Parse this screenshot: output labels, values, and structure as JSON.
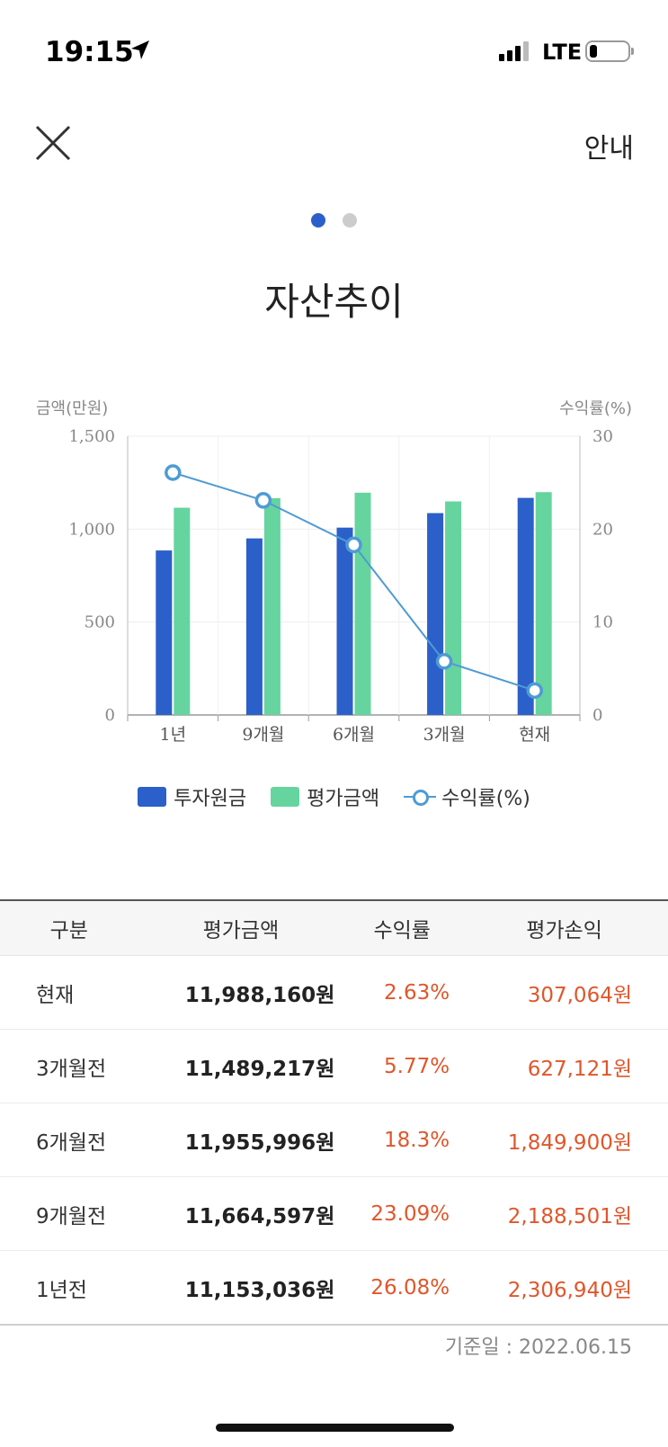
{
  "status_bar": {
    "time": "19:15",
    "network": "LTE"
  },
  "header": {
    "info_label": "안내"
  },
  "pager": {
    "total": 2,
    "active": 0
  },
  "page_title": "자산추이",
  "colors": {
    "invest": "#2b5fc9",
    "eval": "#66d49e",
    "rate": "#4e9bd4",
    "negative_red": "#e0562a"
  },
  "chart_data": {
    "type": "bar",
    "categories": [
      "1년",
      "9개월",
      "6개월",
      "3개월",
      "현재"
    ],
    "y_left_label": "금액(만원)",
    "y_right_label": "수익률(%)",
    "y_left_ticks": [
      "0",
      "500",
      "1,000",
      "1,500"
    ],
    "y_right_ticks": [
      "0",
      "10",
      "20",
      "30"
    ],
    "ylim_left": [
      0,
      1500
    ],
    "ylim_right": [
      0,
      30
    ],
    "series": [
      {
        "name": "투자원금",
        "type": "bar",
        "axis": "left",
        "values": [
          885,
          950,
          1008,
          1086,
          1168
        ]
      },
      {
        "name": "평가금액",
        "type": "bar",
        "axis": "left",
        "values": [
          1115,
          1166,
          1196,
          1149,
          1199
        ]
      },
      {
        "name": "수익률(%)",
        "type": "line",
        "axis": "right",
        "values": [
          26.08,
          23.09,
          18.3,
          5.77,
          2.63
        ]
      }
    ],
    "grid": true,
    "legend": "bottom-center"
  },
  "table": {
    "headers": [
      "구분",
      "평가금액",
      "수익률",
      "평가손익"
    ],
    "rows": [
      [
        "현재",
        "11,988,160원",
        "2.63%",
        "307,064원"
      ],
      [
        "3개월전",
        "11,489,217원",
        "5.77%",
        "627,121원"
      ],
      [
        "6개월전",
        "11,955,996원",
        "18.3%",
        "1,849,900원"
      ],
      [
        "9개월전",
        "11,664,597원",
        "23.09%",
        "2,188,501원"
      ],
      [
        "1년전",
        "11,153,036원",
        "26.08%",
        "2,306,940원"
      ]
    ]
  },
  "base_date": "기준일 : 2022.06.15"
}
